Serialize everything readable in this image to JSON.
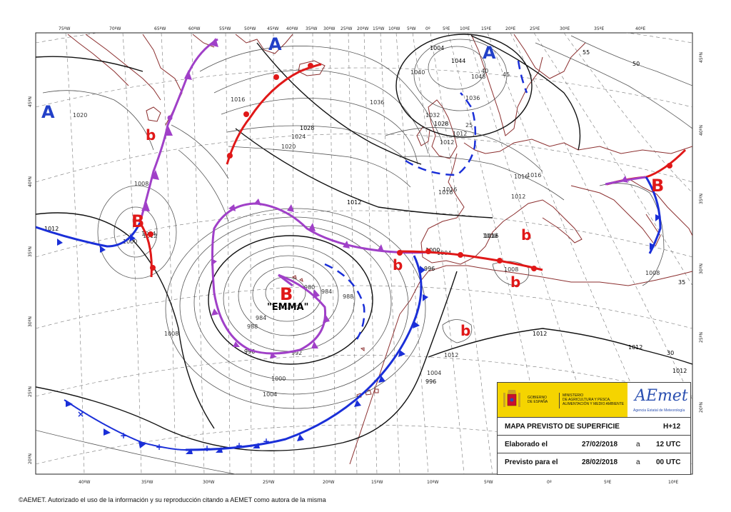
{
  "top_longitudes": [
    "75ºW",
    "70ºW",
    "65ºW",
    "60ºW",
    "55ºW",
    "50ºW",
    "45ºW",
    "40ºW",
    "35ºW",
    "30ºW",
    "25ºW",
    "20ºW",
    "15ºW",
    "10ºW",
    "5ºW",
    "0º",
    "5ºE",
    "10ºE",
    "15ºE",
    "20ºE",
    "25ºE",
    "30ºE",
    "35ºE",
    "40ºE"
  ],
  "bottom_longitudes": [
    "40ºW",
    "35ºW",
    "30ºW",
    "25ºW",
    "20ºW",
    "15ºW",
    "10ºW",
    "5ºW",
    "0º",
    "5ºE",
    "10ºE"
  ],
  "left_latitudes": [
    "45ºN",
    "40ºN",
    "35ºN",
    "30ºN",
    "25ºN",
    "20ºN"
  ],
  "right_latitudes": [
    "45ºN",
    "40ºN",
    "35ºN",
    "30ºN",
    "25ºN",
    "20ºN"
  ],
  "pressure_centers": {
    "high_label": "A",
    "low_label": "B",
    "small_low_label": "b",
    "storm_name": "\"EMMA\""
  },
  "isobar_labels": [
    "1020",
    "1016",
    "1036",
    "1032",
    "1040",
    "1044",
    "1048",
    "1036",
    "1028",
    "1024",
    "1020",
    "1028",
    "1016",
    "1016",
    "1012",
    "1012",
    "1000",
    "1004",
    "1008",
    "1004",
    "1000",
    "996",
    "992",
    "988",
    "984",
    "980",
    "984",
    "988",
    "996",
    "1000",
    "1004",
    "1008",
    "1012",
    "1012",
    "1012",
    "1012",
    "1008",
    "1008",
    "1004",
    "1000",
    "996",
    "1012",
    "1016",
    "1016",
    "1016",
    "1012",
    "1004",
    "55",
    "50",
    "45",
    "40",
    "35",
    "30",
    "25",
    "1012",
    "1012",
    "1016",
    "996"
  ],
  "legend": {
    "gov_line1": "GOBIERNO",
    "gov_line2": "DE ESPAÑA",
    "ministry_line1": "MINISTERIO",
    "ministry_line2": "DE AGRICULTURA Y PESCA,",
    "ministry_line3": "ALIMENTACIÓN Y MEDIO AMBIENTE",
    "agency_logo": "AEmet",
    "agency_name": "Agencia Estatal de Meteorología",
    "title": "MAPA PREVISTO DE SUPERFICIE",
    "forecast_step": "H+12",
    "made_label": "Elaborado el",
    "made_date": "27/02/2018",
    "at1": "a",
    "made_time": "12 UTC",
    "valid_label": "Previsto para el",
    "valid_date": "28/02/2018",
    "at2": "a",
    "valid_time": "00 UTC"
  },
  "footer": "©AEMET. Autorizado el uso de la información y su reproducción citando a AEMET como autora de la misma",
  "colors": {
    "warm_front": "#e01818",
    "cold_front": "#1a2fd8",
    "occluded_front": "#a040c8",
    "high": "#2240c8",
    "low": "#e01818",
    "coast": "#8b2e2e"
  }
}
